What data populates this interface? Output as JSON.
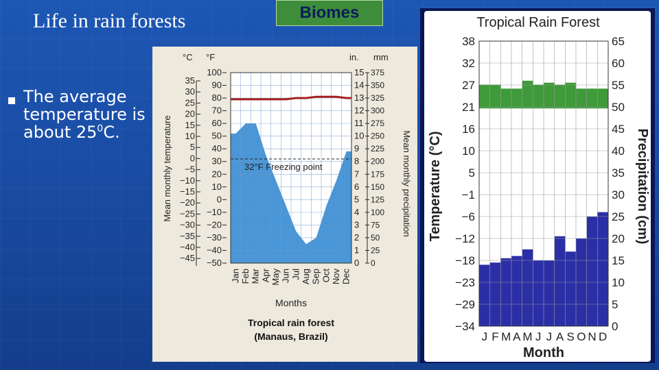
{
  "slide": {
    "title": "Life in rain forests",
    "badge": "Biomes",
    "bullet_text": "The average temperature is about 25",
    "bullet_sup": "0",
    "bullet_suffix": "C."
  },
  "colors": {
    "background": "#1a4ea6",
    "badge": "#3e8d3b",
    "precip_fill": "#4a96d6",
    "temp_line": "#a51f1f",
    "green_band": "#3f9a3a",
    "dark_bars": "#2b2fa6"
  },
  "chart_data": [
    {
      "type": "area",
      "title": "Tropical rain forest",
      "subtitle": "(Manaus, Brazil)",
      "xlabel": "Months",
      "ylabel_left": "Mean monthly temperature",
      "ylabel_right": "Mean monthly precipitation",
      "unit_c": "°C",
      "unit_f": "°F",
      "unit_in": "in.",
      "unit_mm": "mm",
      "annotation": "32°F Freezing point",
      "categories": [
        "Jan",
        "Feb",
        "Mar",
        "Apr",
        "May",
        "Jun",
        "Jul",
        "Aug",
        "Sep",
        "Oct",
        "Nov",
        "Dec"
      ],
      "ticks_c": [
        "35",
        "30",
        "25",
        "20",
        "15",
        "10",
        "5",
        "0",
        "−5",
        "−10",
        "−15",
        "−20",
        "−25",
        "−30",
        "−35",
        "−40",
        "−45"
      ],
      "ticks_f": [
        "100",
        "90",
        "80",
        "70",
        "60",
        "50",
        "40",
        "30",
        "20",
        "10",
        "0",
        "−10",
        "−20",
        "−30",
        "−40",
        "−50"
      ],
      "ticks_in": [
        "15",
        "14",
        "13",
        "12",
        "11",
        "10",
        "9",
        "8",
        "7",
        "6",
        "5",
        "4",
        "3",
        "2",
        "1",
        "0"
      ],
      "ticks_mm": [
        "375",
        "350",
        "325",
        "300",
        "275",
        "250",
        "225",
        "200",
        "175",
        "150",
        "125",
        "100",
        "75",
        "50",
        "25",
        "0"
      ],
      "series": [
        {
          "name": "temperature",
          "unit": "°F",
          "values": [
            79,
            79,
            79,
            79,
            79,
            79,
            80,
            80,
            81,
            81,
            81,
            80
          ]
        },
        {
          "name": "precipitation",
          "unit": "in.",
          "values": [
            10.2,
            11.0,
            11.0,
            8.5,
            6.5,
            4.5,
            2.5,
            1.5,
            2.0,
            4.5,
            6.5,
            8.8
          ]
        }
      ],
      "ylim_f": [
        -50,
        100
      ],
      "ylim_in": [
        0,
        15
      ],
      "freezing_point_f": 32,
      "grid": true
    },
    {
      "type": "bar",
      "title": "Tropical Rain Forest",
      "xlabel": "Month",
      "ylabel_left": "Temperature (°C)",
      "ylabel_right": "Precipitation (cm)",
      "categories": [
        "J",
        "F",
        "M",
        "A",
        "M",
        "J",
        "J",
        "A",
        "S",
        "O",
        "N",
        "D"
      ],
      "ticks_temp": [
        "38",
        "32",
        "27",
        "21",
        "16",
        "10",
        "5",
        "−1",
        "−6",
        "−12",
        "−18",
        "−23",
        "−29",
        "−34"
      ],
      "ticks_precip": [
        "65",
        "60",
        "55",
        "50",
        "45",
        "40",
        "35",
        "30",
        "25",
        "20",
        "15",
        "10",
        "5",
        "0"
      ],
      "series": [
        {
          "name": "temperature",
          "unit": "°C",
          "values": [
            27,
            27,
            26,
            26,
            28,
            27,
            27.5,
            27,
            27.5,
            26,
            26,
            26
          ]
        },
        {
          "name": "precipitation",
          "unit": "cm",
          "values": [
            14,
            14.5,
            15.5,
            16,
            17.5,
            15,
            15,
            20.5,
            17,
            20,
            25,
            26
          ]
        }
      ],
      "temp_band_low": 21,
      "ylim_temp": [
        -34,
        38
      ],
      "ylim_precip": [
        0,
        65
      ],
      "grid": true
    }
  ]
}
